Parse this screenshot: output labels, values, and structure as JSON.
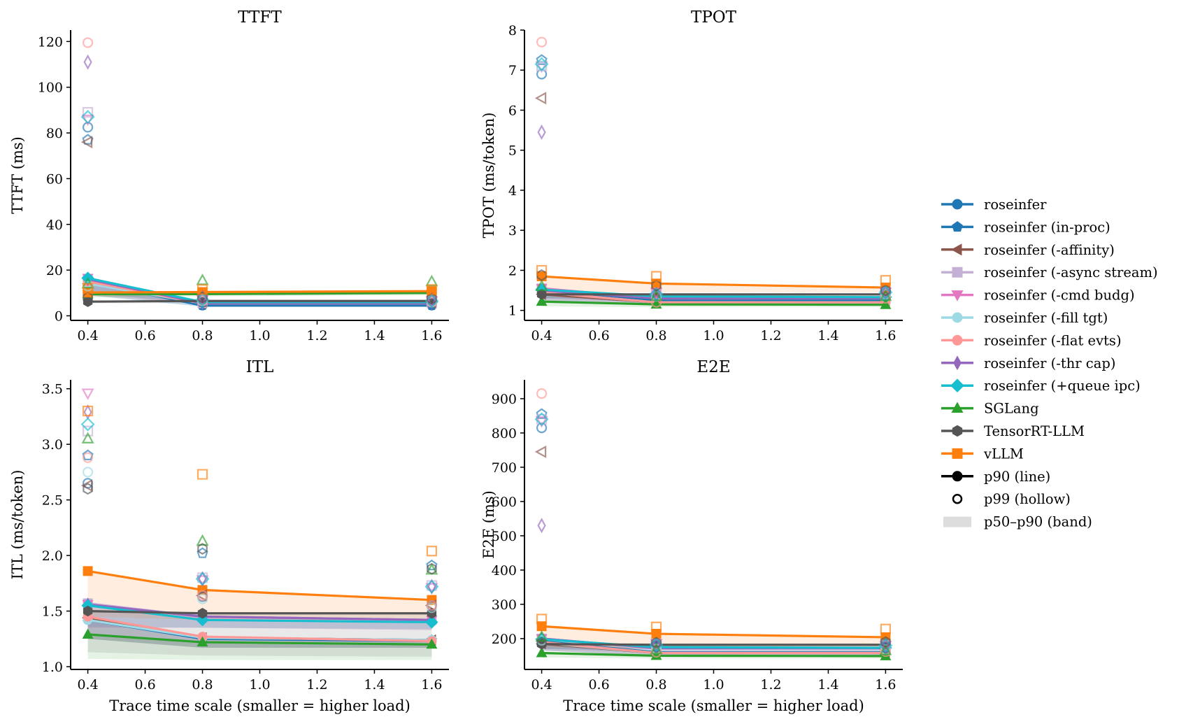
{
  "chart_data": [
    {
      "type": "line",
      "title": "TTFT",
      "xlabel": "",
      "ylabel": "TTFT (ms)",
      "x": [
        0.4,
        0.8,
        1.6
      ],
      "xlim": [
        0.34,
        1.66
      ],
      "ylim": [
        -2,
        125
      ],
      "xticks": [
        0.4,
        0.6,
        0.8,
        1.0,
        1.2,
        1.4,
        1.6
      ],
      "xtick_labels": [
        "0.4",
        "0.6",
        "0.8",
        "1.0",
        "1.2",
        "1.4",
        "1.6"
      ],
      "yticks": [
        0,
        20,
        40,
        60,
        80,
        100,
        120
      ],
      "ytick_labels": [
        "0",
        "20",
        "40",
        "60",
        "80",
        "100",
        "120"
      ],
      "series": [
        {
          "name": "roseinfer",
          "p50": [
            9,
            4,
            4
          ],
          "p90": [
            15,
            4.5,
            4.5
          ],
          "p99": [
            82.5,
            6,
            5.5
          ]
        },
        {
          "name": "roseinfer (in-proc)",
          "p50": [
            9,
            4,
            4
          ],
          "p90": [
            15,
            4.5,
            4.5
          ],
          "p99": [
            77,
            6,
            5.5
          ]
        },
        {
          "name": "roseinfer (-affinity)",
          "p50": [
            9,
            5,
            5
          ],
          "p90": [
            14,
            5.5,
            5.5
          ],
          "p99": [
            76,
            6.5,
            6
          ]
        },
        {
          "name": "roseinfer (-async stream)",
          "p50": [
            10,
            5,
            5
          ],
          "p90": [
            16,
            5.5,
            5.5
          ],
          "p99": [
            89,
            7,
            6.5
          ]
        },
        {
          "name": "roseinfer (-cmd budg)",
          "p50": [
            10,
            5,
            5
          ],
          "p90": [
            16.5,
            5.5,
            5.5
          ],
          "p99": [
            86,
            7,
            6.5
          ]
        },
        {
          "name": "roseinfer (-fill tgt)",
          "p50": [
            9,
            5,
            5
          ],
          "p90": [
            14,
            5.5,
            5.5
          ],
          "p99": [
            13,
            6.5,
            6
          ]
        },
        {
          "name": "roseinfer (-flat evts)",
          "p50": [
            9,
            5,
            5
          ],
          "p90": [
            15,
            5.5,
            5.5
          ],
          "p99": [
            119.5,
            6.5,
            6
          ]
        },
        {
          "name": "roseinfer (-thr cap)",
          "p50": [
            10,
            5,
            5
          ],
          "p90": [
            16,
            5.5,
            5.5
          ],
          "p99": [
            111,
            8,
            7
          ]
        },
        {
          "name": "roseinfer (+queue ipc)",
          "p50": [
            10,
            5.5,
            5.5
          ],
          "p90": [
            16.5,
            6,
            6
          ],
          "p99": [
            87,
            7,
            6.5
          ]
        },
        {
          "name": "SGLang",
          "p50": [
            8,
            8.5,
            9
          ],
          "p90": [
            9.5,
            9.5,
            10
          ],
          "p99": [
            14,
            15.5,
            15
          ]
        },
        {
          "name": "TensorRT-LLM",
          "p50": [
            5.5,
            5.5,
            6
          ],
          "p90": [
            6.2,
            6.5,
            6.5
          ],
          "p99": [
            8,
            8,
            7.5
          ]
        },
        {
          "name": "vLLM",
          "p50": [
            8.5,
            9,
            9.5
          ],
          "p90": [
            10.2,
            10.4,
            10.8
          ],
          "p99": [
            12,
            11.5,
            11.5
          ]
        }
      ]
    },
    {
      "type": "line",
      "title": "TPOT",
      "xlabel": "",
      "ylabel": "TPOT (ms/token)",
      "x": [
        0.4,
        0.8,
        1.6
      ],
      "xlim": [
        0.34,
        1.66
      ],
      "ylim": [
        0.75,
        8.0
      ],
      "xticks": [
        0.4,
        0.6,
        0.8,
        1.0,
        1.2,
        1.4,
        1.6
      ],
      "xtick_labels": [
        "0.4",
        "0.6",
        "0.8",
        "1.0",
        "1.2",
        "1.4",
        "1.6"
      ],
      "yticks": [
        1,
        2,
        3,
        4,
        5,
        6,
        7,
        8
      ],
      "ytick_labels": [
        "1",
        "2",
        "3",
        "4",
        "5",
        "6",
        "7",
        "8"
      ],
      "series": [
        {
          "name": "roseinfer",
          "p50": [
            1.25,
            1.15,
            1.15
          ],
          "p90": [
            1.45,
            1.2,
            1.2
          ],
          "p99": [
            6.9,
            1.35,
            1.4
          ]
        },
        {
          "name": "roseinfer (in-proc)",
          "p50": [
            1.25,
            1.15,
            1.15
          ],
          "p90": [
            1.5,
            1.25,
            1.25
          ],
          "p99": [
            7.25,
            1.4,
            1.45
          ]
        },
        {
          "name": "roseinfer (-affinity)",
          "p50": [
            1.25,
            1.15,
            1.15
          ],
          "p90": [
            1.4,
            1.2,
            1.2
          ],
          "p99": [
            6.3,
            1.35,
            1.4
          ]
        },
        {
          "name": "roseinfer (-async stream)",
          "p50": [
            1.3,
            1.2,
            1.2
          ],
          "p90": [
            1.55,
            1.3,
            1.3
          ],
          "p99": [
            7.1,
            1.4,
            1.45
          ]
        },
        {
          "name": "roseinfer (-cmd budg)",
          "p50": [
            1.3,
            1.2,
            1.2
          ],
          "p90": [
            1.55,
            1.3,
            1.3
          ],
          "p99": [
            7.1,
            1.45,
            1.45
          ]
        },
        {
          "name": "roseinfer (-fill tgt)",
          "p50": [
            1.25,
            1.15,
            1.15
          ],
          "p90": [
            1.45,
            1.2,
            1.2
          ],
          "p99": [
            7.1,
            1.35,
            1.4
          ]
        },
        {
          "name": "roseinfer (-flat evts)",
          "p50": [
            1.25,
            1.15,
            1.15
          ],
          "p90": [
            1.45,
            1.2,
            1.2
          ],
          "p99": [
            7.7,
            1.2,
            1.3
          ]
        },
        {
          "name": "roseinfer (-thr cap)",
          "p50": [
            1.3,
            1.2,
            1.2
          ],
          "p90": [
            1.5,
            1.3,
            1.3
          ],
          "p99": [
            5.45,
            1.4,
            1.45
          ]
        },
        {
          "name": "roseinfer (+queue ipc)",
          "p50": [
            1.3,
            1.25,
            1.25
          ],
          "p90": [
            1.52,
            1.35,
            1.33
          ],
          "p99": [
            7.15,
            1.4,
            1.45
          ]
        },
        {
          "name": "SGLang",
          "p50": [
            1.1,
            1.08,
            1.08
          ],
          "p90": [
            1.22,
            1.15,
            1.14
          ],
          "p99": [
            1.6,
            1.35,
            1.35
          ]
        },
        {
          "name": "TensorRT-LLM",
          "p50": [
            1.3,
            1.3,
            1.3
          ],
          "p90": [
            1.4,
            1.4,
            1.4
          ],
          "p99": [
            1.88,
            1.62,
            1.5
          ]
        },
        {
          "name": "vLLM",
          "p50": [
            1.45,
            1.45,
            1.45
          ],
          "p90": [
            1.85,
            1.67,
            1.57
          ],
          "p99": [
            2.0,
            1.85,
            1.75
          ]
        }
      ]
    },
    {
      "type": "line",
      "title": "ITL",
      "xlabel": "Trace time scale (smaller = higher load)",
      "ylabel": "ITL (ms/token)",
      "x": [
        0.4,
        0.8,
        1.6
      ],
      "xlim": [
        0.34,
        1.66
      ],
      "ylim": [
        0.975,
        3.58
      ],
      "xticks": [
        0.4,
        0.6,
        0.8,
        1.0,
        1.2,
        1.4,
        1.6
      ],
      "xtick_labels": [
        "0.4",
        "0.6",
        "0.8",
        "1.0",
        "1.2",
        "1.4",
        "1.6"
      ],
      "yticks": [
        1.0,
        1.5,
        2.0,
        2.5,
        3.0,
        3.5
      ],
      "ytick_labels": [
        "1.0",
        "1.5",
        "2.0",
        "2.5",
        "3.0",
        "3.5"
      ],
      "series": [
        {
          "name": "roseinfer",
          "p50": [
            1.25,
            1.17,
            1.17
          ],
          "p90": [
            1.42,
            1.25,
            1.23
          ],
          "p99": [
            2.65,
            1.63,
            1.55
          ]
        },
        {
          "name": "roseinfer (in-proc)",
          "p50": [
            1.25,
            1.17,
            1.17
          ],
          "p90": [
            1.43,
            1.26,
            1.24
          ],
          "p99": [
            2.9,
            2.02,
            1.91
          ]
        },
        {
          "name": "roseinfer (-affinity)",
          "p50": [
            1.25,
            1.17,
            1.17
          ],
          "p90": [
            1.44,
            1.26,
            1.24
          ],
          "p99": [
            2.63,
            1.64,
            1.55
          ]
        },
        {
          "name": "roseinfer (-async stream)",
          "p50": [
            1.35,
            1.35,
            1.33
          ],
          "p90": [
            1.57,
            1.45,
            1.42
          ],
          "p99": [
            3.12,
            1.8,
            1.73
          ]
        },
        {
          "name": "roseinfer (-cmd budg)",
          "p50": [
            1.35,
            1.35,
            1.33
          ],
          "p90": [
            1.56,
            1.45,
            1.42
          ],
          "p99": [
            3.46,
            1.78,
            1.71
          ]
        },
        {
          "name": "roseinfer (-fill tgt)",
          "p50": [
            1.25,
            1.17,
            1.17
          ],
          "p90": [
            1.42,
            1.26,
            1.24
          ],
          "p99": [
            2.75,
            1.61,
            1.53
          ]
        },
        {
          "name": "roseinfer (-flat evts)",
          "p50": [
            1.25,
            1.17,
            1.17
          ],
          "p90": [
            1.45,
            1.27,
            1.23
          ],
          "p99": [
            2.88,
            1.64,
            1.55
          ]
        },
        {
          "name": "roseinfer (-thr cap)",
          "p50": [
            1.35,
            1.35,
            1.33
          ],
          "p90": [
            1.56,
            1.45,
            1.42
          ],
          "p99": [
            3.29,
            1.79,
            1.72
          ]
        },
        {
          "name": "roseinfer (+queue ipc)",
          "p50": [
            1.36,
            1.35,
            1.34
          ],
          "p90": [
            1.55,
            1.42,
            1.4
          ],
          "p99": [
            3.18,
            1.79,
            1.72
          ]
        },
        {
          "name": "SGLang",
          "p50": [
            1.07,
            1.06,
            1.06
          ],
          "p90": [
            1.29,
            1.22,
            1.2
          ],
          "p99": [
            3.05,
            2.13,
            1.87
          ]
        },
        {
          "name": "TensorRT-LLM",
          "p50": [
            1.13,
            1.1,
            1.09
          ],
          "p90": [
            1.5,
            1.48,
            1.48
          ],
          "p99": [
            2.6,
            2.06,
            1.88
          ]
        },
        {
          "name": "vLLM",
          "p50": [
            1.45,
            1.42,
            1.4
          ],
          "p90": [
            1.86,
            1.69,
            1.6
          ],
          "p99": [
            3.3,
            2.73,
            2.04
          ]
        }
      ]
    },
    {
      "type": "line",
      "title": "E2E",
      "xlabel": "Trace time scale (smaller = higher load)",
      "ylabel": "E2E (ms)",
      "x": [
        0.4,
        0.8,
        1.6
      ],
      "xlim": [
        0.34,
        1.66
      ],
      "ylim": [
        110,
        955
      ],
      "xticks": [
        0.4,
        0.6,
        0.8,
        1.0,
        1.2,
        1.4,
        1.6
      ],
      "xtick_labels": [
        "0.4",
        "0.6",
        "0.8",
        "1.0",
        "1.2",
        "1.4",
        "1.6"
      ],
      "yticks": [
        200,
        300,
        400,
        500,
        600,
        700,
        800,
        900
      ],
      "ytick_labels": [
        "200",
        "300",
        "400",
        "500",
        "600",
        "700",
        "800",
        "900"
      ],
      "series": [
        {
          "name": "roseinfer",
          "p50": [
            165,
            150,
            150
          ],
          "p90": [
            188,
            158,
            158
          ],
          "p99": [
            815,
            175,
            172
          ]
        },
        {
          "name": "roseinfer (in-proc)",
          "p50": [
            165,
            150,
            150
          ],
          "p90": [
            192,
            160,
            160
          ],
          "p99": [
            855,
            185,
            185
          ]
        },
        {
          "name": "roseinfer (-affinity)",
          "p50": [
            165,
            150,
            150
          ],
          "p90": [
            185,
            158,
            158
          ],
          "p99": [
            745,
            172,
            170
          ]
        },
        {
          "name": "roseinfer (-async stream)",
          "p50": [
            170,
            160,
            160
          ],
          "p90": [
            200,
            172,
            172
          ],
          "p99": [
            840,
            185,
            180
          ]
        },
        {
          "name": "roseinfer (-cmd budg)",
          "p50": [
            170,
            160,
            160
          ],
          "p90": [
            200,
            172,
            172
          ],
          "p99": [
            835,
            185,
            180
          ]
        },
        {
          "name": "roseinfer (-fill tgt)",
          "p50": [
            165,
            150,
            150
          ],
          "p90": [
            188,
            158,
            158
          ],
          "p99": [
            195,
            170,
            168
          ]
        },
        {
          "name": "roseinfer (-flat evts)",
          "p50": [
            165,
            150,
            150
          ],
          "p90": [
            190,
            158,
            158
          ],
          "p99": [
            915,
            160,
            162
          ]
        },
        {
          "name": "roseinfer (-thr cap)",
          "p50": [
            170,
            160,
            160
          ],
          "p90": [
            200,
            172,
            172
          ],
          "p99": [
            530,
            180,
            178
          ]
        },
        {
          "name": "roseinfer (+queue ipc)",
          "p50": [
            170,
            162,
            162
          ],
          "p90": [
            198,
            175,
            173
          ],
          "p99": [
            840,
            182,
            180
          ]
        },
        {
          "name": "SGLang",
          "p50": [
            145,
            142,
            142
          ],
          "p90": [
            158,
            150,
            149
          ],
          "p99": [
            205,
            168,
            165
          ]
        },
        {
          "name": "TensorRT-LLM",
          "p50": [
            170,
            170,
            170
          ],
          "p90": [
            184,
            182,
            182
          ],
          "p99": [
            188,
            188,
            190
          ]
        },
        {
          "name": "vLLM",
          "p50": [
            175,
            170,
            170
          ],
          "p90": [
            236,
            214,
            204
          ],
          "p99": [
            257,
            234,
            228
          ]
        }
      ]
    }
  ],
  "legend": {
    "placement": "right",
    "entries": [
      {
        "label": "roseinfer",
        "color": "#1f77b4",
        "marker": "circle"
      },
      {
        "label": "roseinfer (in-proc)",
        "color": "#1f77b4",
        "marker": "pentagon"
      },
      {
        "label": "roseinfer (-affinity)",
        "color": "#8c564b",
        "marker": "triangle-left"
      },
      {
        "label": "roseinfer (-async stream)",
        "color": "#c5b0d5",
        "marker": "square"
      },
      {
        "label": "roseinfer (-cmd budg)",
        "color": "#e377c2",
        "marker": "triangle-down"
      },
      {
        "label": "roseinfer (-fill tgt)",
        "color": "#9edae5",
        "marker": "circle"
      },
      {
        "label": "roseinfer (-flat evts)",
        "color": "#ff9896",
        "marker": "circle"
      },
      {
        "label": "roseinfer (-thr cap)",
        "color": "#9467bd",
        "marker": "thin-diamond"
      },
      {
        "label": "roseinfer (+queue ipc)",
        "color": "#17becf",
        "marker": "diamond"
      },
      {
        "label": "SGLang",
        "color": "#2ca02c",
        "marker": "triangle-up"
      },
      {
        "label": "TensorRT-LLM",
        "color": "#555555",
        "marker": "hexagon"
      },
      {
        "label": "vLLM",
        "color": "#ff7f0e",
        "marker": "square"
      },
      {
        "label": "p90 (line)",
        "color": "#000000",
        "marker": "circle"
      },
      {
        "label": "p99 (hollow)",
        "color": "#000000",
        "marker": "hollow-circle"
      },
      {
        "label": "p50–p90 (band)",
        "color": "#dddddd",
        "marker": "band"
      }
    ]
  }
}
